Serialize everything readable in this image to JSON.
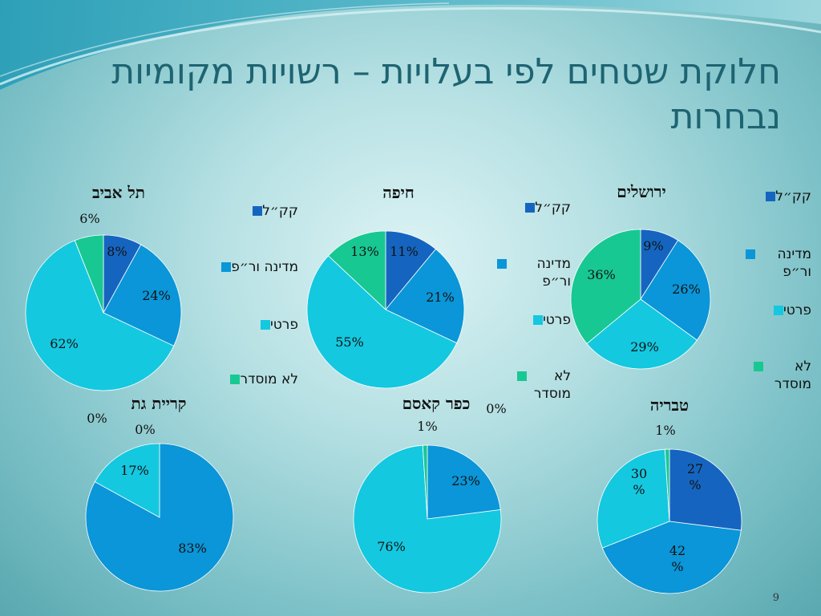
{
  "slide": {
    "title": "חלוקת שטחים לפי בעלויות – רשויות מקומיות נבחרות",
    "page_number": "9"
  },
  "colors": {
    "ק\"ל": "#1565c0",
    "state": "#0a96d8",
    "private": "#14c8e0",
    "unregulated": "#18c892"
  },
  "legends": [
    {
      "items": [
        "קק״ל",
        "מדינה ור״פ",
        "פרטי",
        "לא מוסדר"
      ]
    },
    {
      "items": [
        "קק״ל",
        "מדינה ור״פ",
        "פרטי",
        "לא מוסדר"
      ]
    },
    {
      "items": [
        "קק״ל",
        "מדינה ור״פ",
        "פרטי",
        "לא מוסדר"
      ]
    }
  ],
  "chart_data": [
    {
      "type": "pie",
      "title": "תל אביב",
      "categories": [
        "קק״ל",
        "מדינה ור״פ",
        "פרטי",
        "לא מוסדר"
      ],
      "values": [
        8,
        24,
        62,
        6
      ],
      "labels": [
        "8%",
        "24%",
        "62%",
        "6%"
      ]
    },
    {
      "type": "pie",
      "title": "חיפה",
      "categories": [
        "קק״ל",
        "מדינה ור״פ",
        "פרטי",
        "לא מוסדר"
      ],
      "values": [
        11,
        21,
        55,
        13
      ],
      "labels": [
        "11%",
        "21%",
        "55%",
        "13%"
      ]
    },
    {
      "type": "pie",
      "title": "ירושלים",
      "categories": [
        "קק״ל",
        "מדינה ור״פ",
        "פרטי",
        "לא מוסדר"
      ],
      "values": [
        9,
        26,
        29,
        36
      ],
      "labels": [
        "9%",
        "26%",
        "29%",
        "36%"
      ]
    },
    {
      "type": "pie",
      "title": "קריית גת",
      "categories": [
        "קק״ל",
        "מדינה ור״פ",
        "פרטי",
        "לא מוסדר"
      ],
      "values": [
        0,
        83,
        17,
        0
      ],
      "labels": [
        "0%",
        "83%",
        "17%",
        "0%"
      ]
    },
    {
      "type": "pie",
      "title": "כפר קאסם",
      "categories": [
        "קק״ל",
        "מדינה ור״פ",
        "פרטי",
        "לא מוסדר"
      ],
      "values": [
        0,
        23,
        76,
        1
      ],
      "labels": [
        "0%",
        "23%",
        "76%",
        "1%"
      ]
    },
    {
      "type": "pie",
      "title": "טבריה",
      "categories": [
        "קק״ל",
        "מדינה ור״פ",
        "פרטי",
        "לא מוסדר"
      ],
      "values": [
        27,
        42,
        30,
        1
      ],
      "labels": [
        "27 %",
        "42 %",
        "30 %",
        "1%"
      ]
    }
  ]
}
